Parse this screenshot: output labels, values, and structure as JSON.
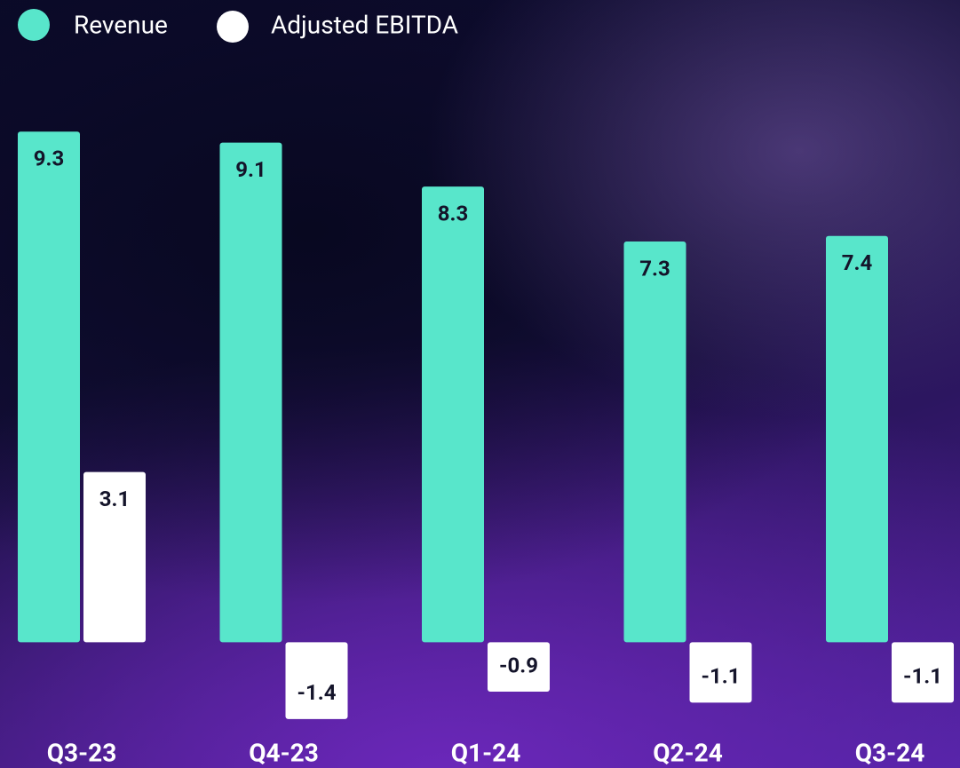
{
  "chart_data": {
    "type": "bar",
    "categories": [
      "Q3-23",
      "Q4-23",
      "Q1-24",
      "Q2-24",
      "Q3-24"
    ],
    "series": [
      {
        "name": "Revenue",
        "color": "#58e6cb",
        "values": [
          9.3,
          9.1,
          8.3,
          7.3,
          7.4
        ]
      },
      {
        "name": "Adjusted EBITDA",
        "color": "#ffffff",
        "values": [
          3.1,
          -1.4,
          -0.9,
          -1.1,
          -1.1
        ]
      }
    ],
    "ylim": [
      -2,
      10
    ]
  }
}
